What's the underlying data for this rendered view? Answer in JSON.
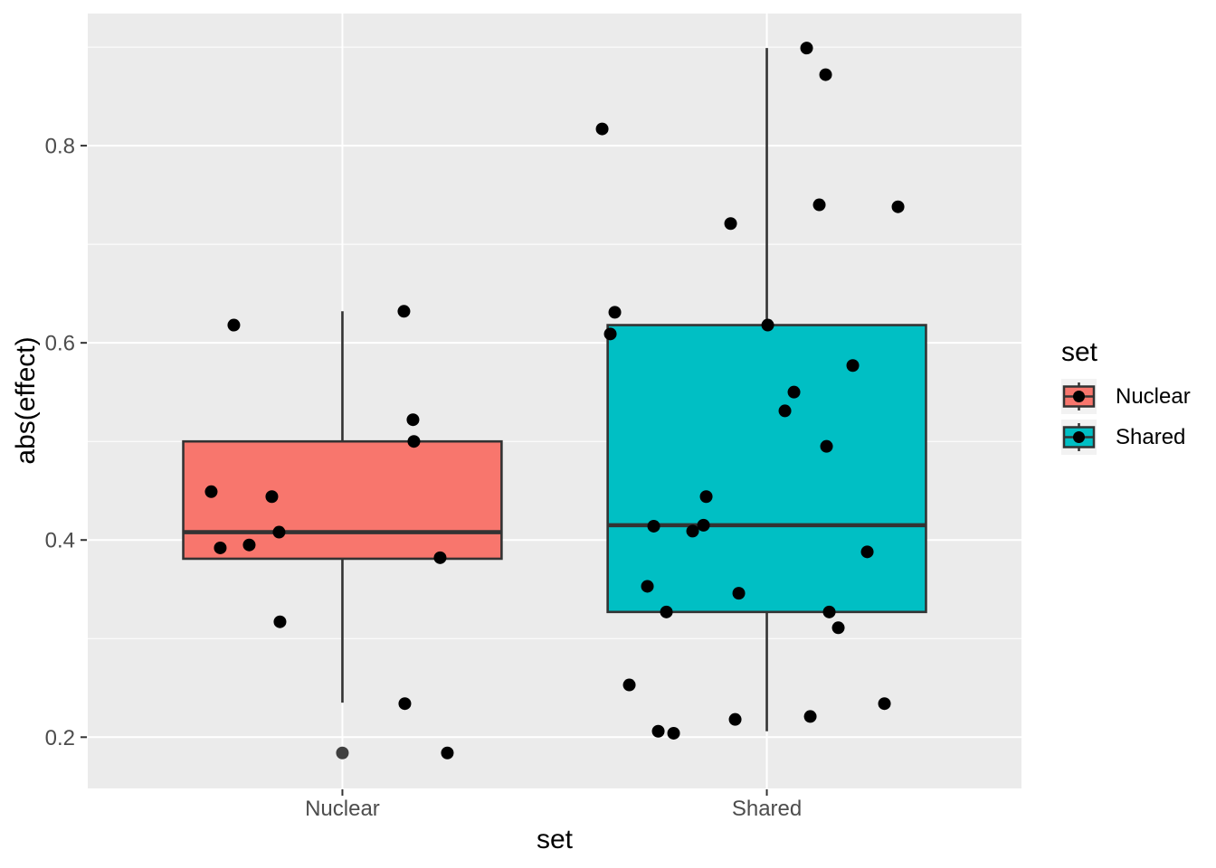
{
  "figure": {
    "xlabel": "set",
    "ylabel": "abs(effect)"
  },
  "legend": {
    "title": "set",
    "entries": [
      {
        "label": "Nuclear",
        "color": "#F8766D"
      },
      {
        "label": "Shared",
        "color": "#00BFC4"
      }
    ]
  },
  "colors": {
    "page_bg": "#FFFFFF",
    "panel_bg": "#EBEBEB",
    "grid_major": "#FFFFFF",
    "grid_minor": "#FFFFFF",
    "box_outline": "#333333",
    "jitter_point": "#000000",
    "outlier_point": "#3F3F3F",
    "tick_mark": "#333333",
    "tick_label": "#4D4D4D",
    "axis_title": "#000000",
    "legend_key_bg": "#F2F2F2"
  },
  "chart_data": {
    "type": "boxplot",
    "title": "",
    "xlabel": "set",
    "ylabel": "abs(effect)",
    "categories": [
      "Nuclear",
      "Shared"
    ],
    "grid": true,
    "legend_position": "right",
    "y_axis": {
      "range": [
        0.148,
        0.934
      ],
      "major_ticks": [
        0.2,
        0.4,
        0.6,
        0.8
      ],
      "tick_labels": [
        "0.2",
        "0.4",
        "0.6",
        "0.8"
      ],
      "minor_gridlines": [
        0.3,
        0.5,
        0.7,
        0.9
      ]
    },
    "series": [
      {
        "name": "Nuclear",
        "fill": "#F8766D",
        "box": {
          "whisker_low": 0.235,
          "q1": 0.381,
          "median": 0.408,
          "q3": 0.5,
          "whisker_high": 0.632,
          "outliers": [
            0.184
          ]
        },
        "jitter_points": [
          {
            "dx": -120,
            "y": 0.618
          },
          {
            "dx": 68,
            "y": 0.632
          },
          {
            "dx": 78,
            "y": 0.522
          },
          {
            "dx": 79,
            "y": 0.5
          },
          {
            "dx": -145,
            "y": 0.449
          },
          {
            "dx": -78,
            "y": 0.444
          },
          {
            "dx": -70,
            "y": 0.408
          },
          {
            "dx": -103,
            "y": 0.395
          },
          {
            "dx": -135,
            "y": 0.392
          },
          {
            "dx": 108,
            "y": 0.382
          },
          {
            "dx": -69,
            "y": 0.317
          },
          {
            "dx": 69,
            "y": 0.234
          },
          {
            "dx": 116,
            "y": 0.184
          }
        ]
      },
      {
        "name": "Shared",
        "fill": "#00BFC4",
        "box": {
          "whisker_low": 0.206,
          "q1": 0.327,
          "median": 0.415,
          "q3": 0.618,
          "whisker_high": 0.899,
          "outliers": []
        },
        "jitter_points": [
          {
            "dx": 44,
            "y": 0.899
          },
          {
            "dx": 65,
            "y": 0.872
          },
          {
            "dx": -182,
            "y": 0.817
          },
          {
            "dx": 58,
            "y": 0.74
          },
          {
            "dx": 145,
            "y": 0.738
          },
          {
            "dx": -40,
            "y": 0.721
          },
          {
            "dx": -168,
            "y": 0.631
          },
          {
            "dx": 1,
            "y": 0.618
          },
          {
            "dx": -173,
            "y": 0.609
          },
          {
            "dx": 95,
            "y": 0.577
          },
          {
            "dx": 30,
            "y": 0.55
          },
          {
            "dx": 20,
            "y": 0.531
          },
          {
            "dx": 66,
            "y": 0.495
          },
          {
            "dx": -67,
            "y": 0.444
          },
          {
            "dx": -70,
            "y": 0.415
          },
          {
            "dx": -125,
            "y": 0.414
          },
          {
            "dx": -82,
            "y": 0.409
          },
          {
            "dx": 111,
            "y": 0.388
          },
          {
            "dx": -132,
            "y": 0.353
          },
          {
            "dx": -31,
            "y": 0.346
          },
          {
            "dx": -111,
            "y": 0.327
          },
          {
            "dx": 69,
            "y": 0.327
          },
          {
            "dx": 79,
            "y": 0.311
          },
          {
            "dx": -152,
            "y": 0.253
          },
          {
            "dx": 130,
            "y": 0.234
          },
          {
            "dx": 48,
            "y": 0.221
          },
          {
            "dx": -35,
            "y": 0.218
          },
          {
            "dx": -120,
            "y": 0.206
          },
          {
            "dx": -103,
            "y": 0.204
          }
        ]
      }
    ]
  }
}
